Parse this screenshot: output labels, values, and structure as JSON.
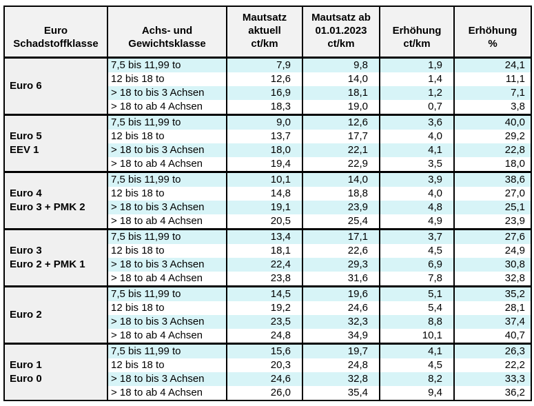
{
  "colors": {
    "border": "#000000",
    "header_bg": "#f2f2f2",
    "group_bg": "#f0f0f0",
    "row_alt_bg": "#d7f4f7",
    "row_bg": "#ffffff",
    "text": "#000000",
    "page_bg": "#ffffff"
  },
  "chart_data": {
    "type": "table",
    "layout": {
      "grid": "on",
      "group_separator": "thick-black",
      "row_striping": [
        "cyan",
        "white",
        "cyan",
        "white"
      ],
      "numeric_alignment": "right"
    },
    "columns": [
      {
        "id": "euro_class",
        "label": "Euro\nSchadstoffklasse"
      },
      {
        "id": "weight_class",
        "label": "Achs- und\nGewichtsklasse"
      },
      {
        "id": "toll_current",
        "label": "Mautsatz\naktuell\nct/km"
      },
      {
        "id": "toll_2023",
        "label": "Mautsatz ab\n01.01.2023\nct/km"
      },
      {
        "id": "increase_ct",
        "label": "Erhöhung\nct/km"
      },
      {
        "id": "increase_pct",
        "label": "Erhöhung\n%"
      }
    ],
    "groups": [
      {
        "label": "Euro 6",
        "rows": [
          {
            "weight_class": "7,5 bis 11,99 to",
            "toll_current": "7,9",
            "toll_2023": "9,8",
            "increase_ct": "1,9",
            "increase_pct": "24,1"
          },
          {
            "weight_class": "12 bis 18 to",
            "toll_current": "12,6",
            "toll_2023": "14,0",
            "increase_ct": "1,4",
            "increase_pct": "11,1"
          },
          {
            "weight_class": "> 18 to bis 3 Achsen",
            "toll_current": "16,9",
            "toll_2023": "18,1",
            "increase_ct": "1,2",
            "increase_pct": "7,1"
          },
          {
            "weight_class": "> 18 to ab 4 Achsen",
            "toll_current": "18,3",
            "toll_2023": "19,0",
            "increase_ct": "0,7",
            "increase_pct": "3,8"
          }
        ]
      },
      {
        "label": "Euro 5\nEEV 1",
        "rows": [
          {
            "weight_class": "7,5 bis 11,99 to",
            "toll_current": "9,0",
            "toll_2023": "12,6",
            "increase_ct": "3,6",
            "increase_pct": "40,0"
          },
          {
            "weight_class": "12 bis 18 to",
            "toll_current": "13,7",
            "toll_2023": "17,7",
            "increase_ct": "4,0",
            "increase_pct": "29,2"
          },
          {
            "weight_class": "> 18 to bis 3 Achsen",
            "toll_current": "18,0",
            "toll_2023": "22,1",
            "increase_ct": "4,1",
            "increase_pct": "22,8"
          },
          {
            "weight_class": "> 18 to ab 4 Achsen",
            "toll_current": "19,4",
            "toll_2023": "22,9",
            "increase_ct": "3,5",
            "increase_pct": "18,0"
          }
        ]
      },
      {
        "label": "Euro 4\nEuro 3 + PMK 2",
        "rows": [
          {
            "weight_class": "7,5 bis 11,99 to",
            "toll_current": "10,1",
            "toll_2023": "14,0",
            "increase_ct": "3,9",
            "increase_pct": "38,6"
          },
          {
            "weight_class": "12 bis 18 to",
            "toll_current": "14,8",
            "toll_2023": "18,8",
            "increase_ct": "4,0",
            "increase_pct": "27,0"
          },
          {
            "weight_class": "> 18 to bis 3 Achsen",
            "toll_current": "19,1",
            "toll_2023": "23,9",
            "increase_ct": "4,8",
            "increase_pct": "25,1"
          },
          {
            "weight_class": "> 18 to ab 4 Achsen",
            "toll_current": "20,5",
            "toll_2023": "25,4",
            "increase_ct": "4,9",
            "increase_pct": "23,9"
          }
        ]
      },
      {
        "label": "Euro 3\nEuro 2 + PMK 1",
        "rows": [
          {
            "weight_class": "7,5 bis 11,99 to",
            "toll_current": "13,4",
            "toll_2023": "17,1",
            "increase_ct": "3,7",
            "increase_pct": "27,6"
          },
          {
            "weight_class": "12 bis 18 to",
            "toll_current": "18,1",
            "toll_2023": "22,6",
            "increase_ct": "4,5",
            "increase_pct": "24,9"
          },
          {
            "weight_class": "> 18 to bis 3 Achsen",
            "toll_current": "22,4",
            "toll_2023": "29,3",
            "increase_ct": "6,9",
            "increase_pct": "30,8"
          },
          {
            "weight_class": "> 18 to ab 4 Achsen",
            "toll_current": "23,8",
            "toll_2023": "31,6",
            "increase_ct": "7,8",
            "increase_pct": "32,8"
          }
        ]
      },
      {
        "label": "Euro 2",
        "rows": [
          {
            "weight_class": "7,5 bis 11,99 to",
            "toll_current": "14,5",
            "toll_2023": "19,6",
            "increase_ct": "5,1",
            "increase_pct": "35,2"
          },
          {
            "weight_class": "12 bis 18 to",
            "toll_current": "19,2",
            "toll_2023": "24,6",
            "increase_ct": "5,4",
            "increase_pct": "28,1"
          },
          {
            "weight_class": "> 18 to bis 3 Achsen",
            "toll_current": "23,5",
            "toll_2023": "32,3",
            "increase_ct": "8,8",
            "increase_pct": "37,4"
          },
          {
            "weight_class": "> 18 to ab 4 Achsen",
            "toll_current": "24,8",
            "toll_2023": "34,9",
            "increase_ct": "10,1",
            "increase_pct": "40,7"
          }
        ]
      },
      {
        "label": "Euro 1\nEuro 0",
        "rows": [
          {
            "weight_class": "7,5 bis 11,99 to",
            "toll_current": "15,6",
            "toll_2023": "19,7",
            "increase_ct": "4,1",
            "increase_pct": "26,3"
          },
          {
            "weight_class": "12 bis 18 to",
            "toll_current": "20,3",
            "toll_2023": "24,8",
            "increase_ct": "4,5",
            "increase_pct": "22,2"
          },
          {
            "weight_class": "> 18 to bis 3 Achsen",
            "toll_current": "24,6",
            "toll_2023": "32,8",
            "increase_ct": "8,2",
            "increase_pct": "33,3"
          },
          {
            "weight_class": "> 18 to ab 4 Achsen",
            "toll_current": "26,0",
            "toll_2023": "35,4",
            "increase_ct": "9,4",
            "increase_pct": "36,2"
          }
        ]
      }
    ]
  }
}
